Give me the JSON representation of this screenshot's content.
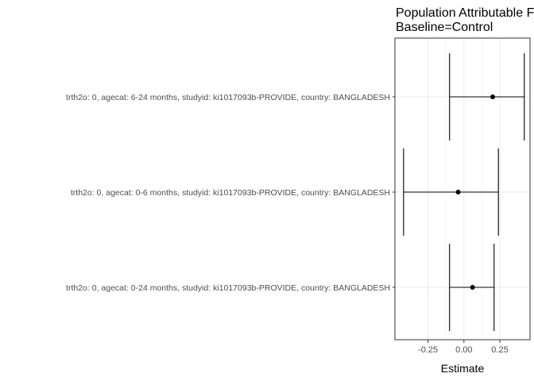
{
  "chart_data": {
    "type": "forest",
    "title_lines": [
      "Population Attributable Fraction",
      "Baseline=Control"
    ],
    "xlabel": "Estimate",
    "ylabel": "",
    "xlim": [
      -0.48,
      0.46
    ],
    "x_ticks": [
      -0.25,
      0.0,
      0.25
    ],
    "x_tick_labels": [
      "-0.25",
      "0.00",
      "0.25"
    ],
    "grid": true,
    "rows": [
      {
        "label": "trth2o: 0, agecat: 6-24 months, studyid: ki1017093b-PROVIDE, country: BANGLADESH",
        "estimate": 0.2,
        "lower": -0.1,
        "upper": 0.42
      },
      {
        "label": "trth2o: 0, agecat: 0-6 months, studyid: ki1017093b-PROVIDE, country: BANGLADESH",
        "estimate": -0.04,
        "lower": -0.42,
        "upper": 0.24
      },
      {
        "label": "trth2o: 0, agecat: 0-24 months, studyid: ki1017093b-PROVIDE, country: BANGLADESH",
        "estimate": 0.06,
        "lower": -0.1,
        "upper": 0.21
      }
    ]
  }
}
